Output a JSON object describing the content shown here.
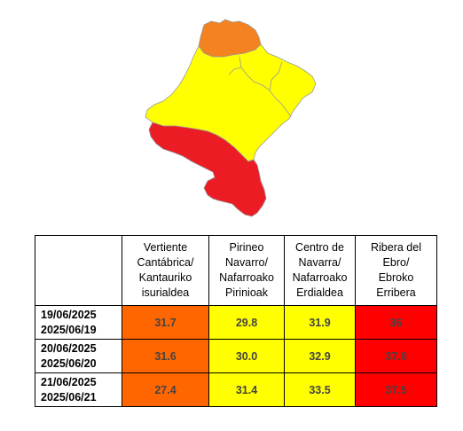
{
  "map": {
    "colors": {
      "north_zone": "#f58220",
      "yellow_zone": "#ffff00",
      "red_zone": "#ec1c24",
      "outline": "#9a9a9a"
    }
  },
  "table": {
    "headers": [
      "",
      "Vertiente Cantábrica/ Kantauriko isurialdea",
      "Pirineo Navarro/ Nafarroako Pirinioak",
      "Centro de Navarra/ Nafarroako Erdialdea",
      "Ribera del Ebro/ Ebroko Erribera"
    ],
    "header_lines": [
      [],
      [
        "Vertiente",
        "Cantábrica/",
        "Kantauriko",
        "isurialdea"
      ],
      [
        "Pirineo",
        "Navarro/",
        "Nafarroako",
        "Pirinioak"
      ],
      [
        "Centro de",
        "Navarra/",
        "Nafarroako",
        "Erdialdea"
      ],
      [
        "Ribera del",
        "Ebro/",
        "Ebroko",
        "Erribera"
      ]
    ],
    "rows": [
      {
        "date_es": "19/06/2025",
        "date_eu": "2025/06/19",
        "values": [
          "31.7",
          "29.8",
          "31.9",
          "36"
        ],
        "colors": [
          "#ff6600",
          "#ffff00",
          "#ffff00",
          "#ff0000"
        ]
      },
      {
        "date_es": "20/06/2025",
        "date_eu": "2025/06/20",
        "values": [
          "31.6",
          "30.0",
          "32.9",
          "37.6"
        ],
        "colors": [
          "#ff6600",
          "#ffff00",
          "#ffff00",
          "#ff0000"
        ]
      },
      {
        "date_es": "21/06/2025",
        "date_eu": "2025/06/21",
        "values": [
          "27.4",
          "31.4",
          "33.5",
          "37.5"
        ],
        "colors": [
          "#ff6600",
          "#ffff00",
          "#ffff00",
          "#ff0000"
        ]
      }
    ]
  }
}
